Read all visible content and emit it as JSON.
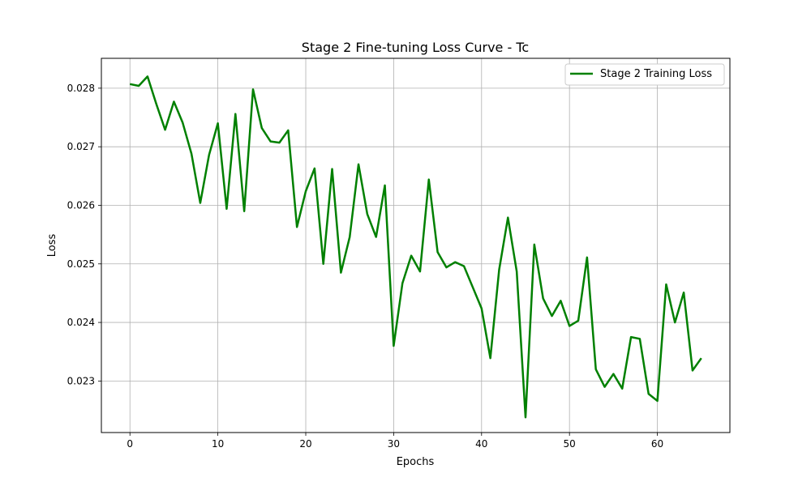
{
  "chart_data": {
    "type": "line",
    "title": "Stage 2 Fine-tuning Loss Curve - Tc",
    "xlabel": "Epochs",
    "ylabel": "Loss",
    "xlim": [
      -3.25,
      68.25
    ],
    "ylim": [
      0.02212,
      0.02851
    ],
    "xticks": [
      0,
      10,
      20,
      30,
      40,
      50,
      60
    ],
    "yticks": [
      0.023,
      0.024,
      0.025,
      0.026,
      0.027,
      0.028
    ],
    "ytick_labels": [
      "0.023",
      "0.024",
      "0.025",
      "0.026",
      "0.027",
      "0.028"
    ],
    "grid": true,
    "legend": {
      "position": "top-right"
    },
    "series": [
      {
        "name": "Stage 2 Training Loss",
        "color": "#008000",
        "x": [
          0,
          1,
          2,
          3,
          4,
          5,
          6,
          7,
          8,
          9,
          10,
          11,
          12,
          13,
          14,
          15,
          16,
          17,
          18,
          19,
          20,
          21,
          22,
          23,
          24,
          25,
          26,
          27,
          28,
          29,
          30,
          31,
          32,
          33,
          34,
          35,
          36,
          37,
          38,
          39,
          40,
          41,
          42,
          43,
          44,
          45,
          46,
          47,
          48,
          49,
          50,
          51,
          52,
          53,
          54,
          55,
          56,
          57,
          58,
          59,
          60,
          61,
          62,
          63,
          64,
          65
        ],
        "values": [
          0.02807,
          0.02804,
          0.0282,
          0.02773,
          0.02729,
          0.02777,
          0.02741,
          0.02688,
          0.02604,
          0.02686,
          0.0274,
          0.02594,
          0.02756,
          0.0259,
          0.02798,
          0.02732,
          0.02709,
          0.02707,
          0.02728,
          0.02563,
          0.02624,
          0.02663,
          0.025,
          0.02662,
          0.02485,
          0.02546,
          0.0267,
          0.02585,
          0.02546,
          0.02634,
          0.0236,
          0.02467,
          0.02514,
          0.02487,
          0.02644,
          0.0252,
          0.02494,
          0.02503,
          0.02496,
          0.0246,
          0.02424,
          0.02339,
          0.0249,
          0.02579,
          0.02487,
          0.02238,
          0.02533,
          0.02441,
          0.02411,
          0.02437,
          0.02394,
          0.02403,
          0.02511,
          0.0232,
          0.0229,
          0.02312,
          0.02287,
          0.02375,
          0.02372,
          0.02278,
          0.02266,
          0.02465,
          0.024,
          0.02451,
          0.02318,
          0.02339
        ]
      }
    ]
  }
}
